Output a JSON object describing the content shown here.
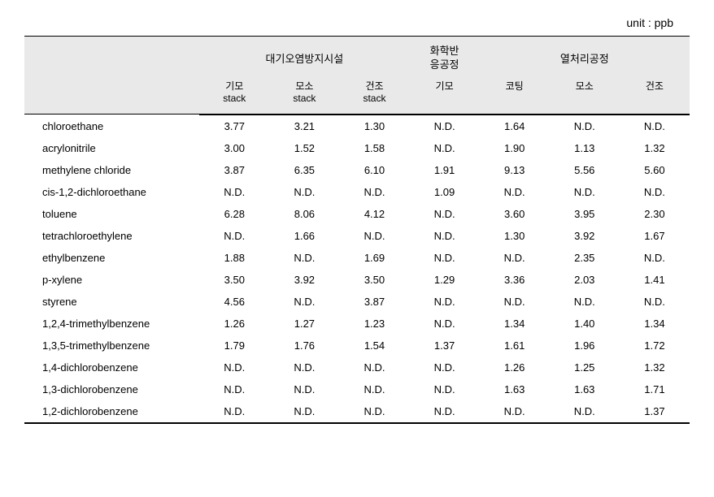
{
  "unit_label": "unit : ppb",
  "header_groups": {
    "group1": "대기오염방지시설",
    "group2_line1": "화학반",
    "group2_line2": "응공정",
    "group3": "열처리공정"
  },
  "sub_headers": {
    "col1_line1": "기모",
    "col1_line2": "stack",
    "col2_line1": "모소",
    "col2_line2": "stack",
    "col3_line1": "건조",
    "col3_line2": "stack",
    "col4": "기모",
    "col5": "코팅",
    "col6": "모소",
    "col7": "건조"
  },
  "rows": [
    {
      "name": "chloroethane",
      "v": [
        "3.77",
        "3.21",
        "1.30",
        "N.D.",
        "1.64",
        "N.D.",
        "N.D."
      ]
    },
    {
      "name": "acrylonitrile",
      "v": [
        "3.00",
        "1.52",
        "1.58",
        "N.D.",
        "1.90",
        "1.13",
        "1.32"
      ]
    },
    {
      "name": "methylene chloride",
      "v": [
        "3.87",
        "6.35",
        "6.10",
        "1.91",
        "9.13",
        "5.56",
        "5.60"
      ]
    },
    {
      "name": "cis-1,2-dichloroethane",
      "v": [
        "N.D.",
        "N.D.",
        "N.D.",
        "1.09",
        "N.D.",
        "N.D.",
        "N.D."
      ]
    },
    {
      "name": "toluene",
      "v": [
        "6.28",
        "8.06",
        "4.12",
        "N.D.",
        "3.60",
        "3.95",
        "2.30"
      ]
    },
    {
      "name": "tetrachloroethylene",
      "v": [
        "N.D.",
        "1.66",
        "N.D.",
        "N.D.",
        "1.30",
        "3.92",
        "1.67"
      ]
    },
    {
      "name": "ethylbenzene",
      "v": [
        "1.88",
        "N.D.",
        "1.69",
        "N.D.",
        "N.D.",
        "2.35",
        "N.D."
      ]
    },
    {
      "name": "p-xylene",
      "v": [
        "3.50",
        "3.92",
        "3.50",
        "1.29",
        "3.36",
        "2.03",
        "1.41"
      ]
    },
    {
      "name": "styrene",
      "v": [
        "4.56",
        "N.D.",
        "3.87",
        "N.D.",
        "N.D.",
        "N.D.",
        "N.D."
      ]
    },
    {
      "name": "1,2,4-trimethylbenzene",
      "v": [
        "1.26",
        "1.27",
        "1.23",
        "N.D.",
        "1.34",
        "1.40",
        "1.34"
      ]
    },
    {
      "name": "1,3,5-trimethylbenzene",
      "v": [
        "1.79",
        "1.76",
        "1.54",
        "1.37",
        "1.61",
        "1.96",
        "1.72"
      ]
    },
    {
      "name": "1,4-dichlorobenzene",
      "v": [
        "N.D.",
        "N.D.",
        "N.D.",
        "N.D.",
        "1.26",
        "1.25",
        "1.32"
      ]
    },
    {
      "name": "1,3-dichlorobenzene",
      "v": [
        "N.D.",
        "N.D.",
        "N.D.",
        "N.D.",
        "1.63",
        "1.63",
        "1.71"
      ]
    },
    {
      "name": "1,2-dichlorobenzene",
      "v": [
        "N.D.",
        "N.D.",
        "N.D.",
        "N.D.",
        "N.D.",
        "N.D.",
        "1.37"
      ]
    }
  ]
}
